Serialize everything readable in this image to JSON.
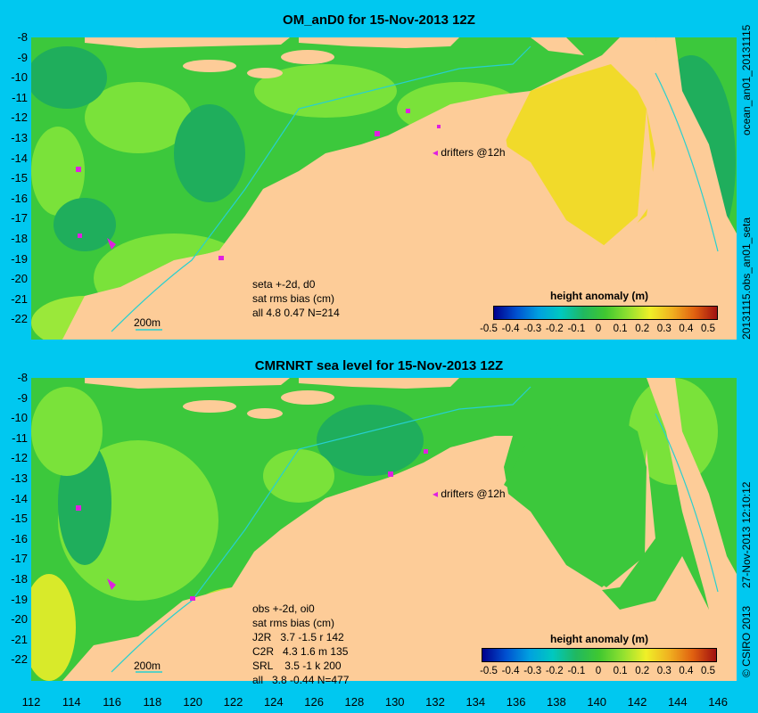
{
  "panel1": {
    "title": "OM_anD0 for 15-Nov-2013 12Z",
    "side_label_top": "ocean_an01_20131115",
    "side_label_bottom": "20131115.obs_an01_seta",
    "drifters": "drifters @12h",
    "scale": "200m",
    "info": [
      "seta +-2d, d0",
      "sat rms bias (cm)",
      "all 4.8 0.47 N=214"
    ],
    "cbar_title": "height anomaly (m)"
  },
  "panel2": {
    "title": "CMRNRT sea level  for 15-Nov-2013 12Z",
    "side_label_top": "27-Nov-2013 12:10:12",
    "side_label_bottom": "© CSIRO 2013",
    "drifters": "drifters @12h",
    "scale": "200m",
    "info": [
      "obs +-2d, oi0",
      "sat rms bias (cm)",
      "J2R   3.7 -1.5 r 142",
      "C2R   4.3 1.6 m 135",
      "SRL    3.5 -1 k 200",
      "all   3.8 -0.44 N=477"
    ],
    "cbar_title": "height anomaly (m)"
  },
  "y_ticks": [
    "-8",
    "-9",
    "-10",
    "-11",
    "-12",
    "-13",
    "-14",
    "-15",
    "-16",
    "-17",
    "-18",
    "-19",
    "-20",
    "-21",
    "-22"
  ],
  "x_ticks": [
    "112",
    "114",
    "116",
    "118",
    "120",
    "122",
    "124",
    "126",
    "128",
    "130",
    "132",
    "134",
    "136",
    "138",
    "140",
    "142",
    "144",
    "146"
  ],
  "cbar_ticks": [
    "-0.5",
    "-0.4",
    "-0.3",
    "-0.2",
    "-0.1",
    "0",
    "0.1",
    "0.2",
    "0.3",
    "0.4",
    "0.5"
  ],
  "colors": {
    "background": "#00c8f0",
    "land": "#fdcc98",
    "ocean_green": "#3cc83c",
    "ocean_light": "#7ae23a",
    "yellow": "#f0ee28"
  }
}
